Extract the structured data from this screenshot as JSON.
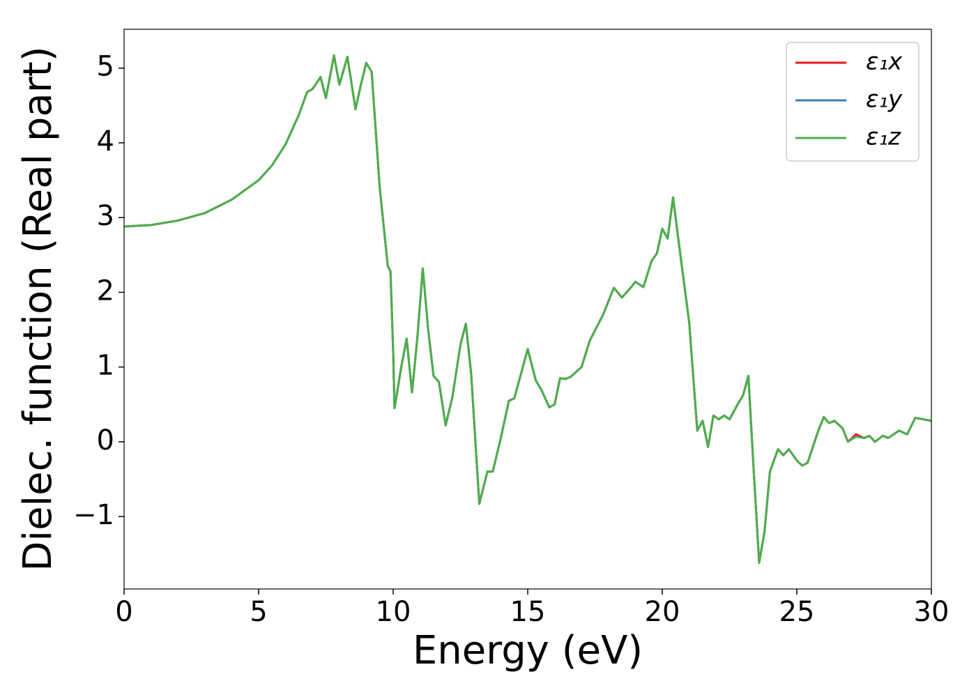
{
  "chart_data": {
    "type": "line",
    "xlabel": "Energy (eV)",
    "ylabel": "Dielec. function (Real part)",
    "xlim": [
      0,
      30
    ],
    "ylim": [
      -1.97,
      5.52
    ],
    "xticks": [
      0,
      5,
      10,
      15,
      20,
      25,
      30
    ],
    "yticks": [
      {
        "value": -1,
        "label": "−1"
      },
      0,
      1,
      2,
      3,
      4,
      5
    ],
    "legend": "upper right",
    "x": [
      0,
      1,
      2,
      3,
      4,
      5,
      5.5,
      6,
      6.5,
      6.8,
      7.0,
      7.3,
      7.5,
      7.8,
      8.0,
      8.3,
      8.6,
      8.8,
      9.0,
      9.2,
      9.5,
      9.8,
      9.9,
      10.0,
      10.05,
      10.3,
      10.5,
      10.7,
      10.9,
      11.1,
      11.3,
      11.5,
      11.7,
      11.95,
      12.2,
      12.5,
      12.7,
      12.9,
      13.2,
      13.5,
      13.7,
      14.0,
      14.3,
      14.5,
      15.0,
      15.3,
      15.5,
      15.8,
      16.0,
      16.2,
      16.4,
      16.6,
      17.0,
      17.3,
      17.8,
      18.2,
      18.5,
      18.8,
      19.0,
      19.3,
      19.6,
      19.8,
      20.0,
      20.2,
      20.4,
      20.6,
      21.0,
      21.3,
      21.5,
      21.7,
      21.9,
      22.1,
      22.3,
      22.5,
      22.8,
      23.0,
      23.2,
      23.4,
      23.6,
      23.8,
      24.0,
      24.3,
      24.5,
      24.7,
      25.0,
      25.2,
      25.4,
      25.8,
      26.0,
      26.2,
      26.4,
      26.7,
      26.9,
      27.2,
      27.5,
      27.7,
      27.9,
      28.2,
      28.4,
      28.8,
      29.1,
      29.4,
      29.7,
      30.0
    ],
    "series": [
      {
        "name": "ε₁x",
        "color": "#e41a1c",
        "values": [
          2.88,
          2.9,
          2.96,
          3.06,
          3.24,
          3.5,
          3.7,
          3.98,
          4.38,
          4.68,
          4.72,
          4.88,
          4.6,
          5.17,
          4.78,
          5.15,
          4.45,
          4.78,
          5.07,
          4.95,
          3.4,
          2.35,
          2.28,
          1.2,
          0.45,
          1.0,
          1.38,
          0.66,
          1.4,
          2.32,
          1.5,
          0.88,
          0.8,
          0.22,
          0.6,
          1.3,
          1.58,
          0.9,
          -0.83,
          -0.4,
          -0.4,
          0.05,
          0.55,
          0.58,
          1.24,
          0.82,
          0.7,
          0.46,
          0.5,
          0.85,
          0.84,
          0.87,
          1.0,
          1.35,
          1.7,
          2.06,
          1.93,
          2.05,
          2.14,
          2.07,
          2.42,
          2.52,
          2.85,
          2.72,
          3.27,
          2.7,
          1.6,
          0.15,
          0.28,
          -0.07,
          0.35,
          0.3,
          0.35,
          0.3,
          0.5,
          0.62,
          0.88,
          -0.4,
          -1.62,
          -1.2,
          -0.4,
          -0.1,
          -0.18,
          -0.1,
          -0.25,
          -0.32,
          -0.28,
          0.15,
          0.33,
          0.25,
          0.28,
          0.18,
          0.0,
          0.1,
          0.05,
          0.08,
          0.0,
          0.08,
          0.05,
          0.15,
          0.1,
          0.32,
          0.3,
          0.28
        ]
      },
      {
        "name": "ε₁y",
        "color": "#377eb8",
        "values": [
          2.88,
          2.9,
          2.96,
          3.06,
          3.24,
          3.5,
          3.7,
          3.98,
          4.38,
          4.68,
          4.72,
          4.88,
          4.6,
          5.17,
          4.78,
          5.15,
          4.45,
          4.78,
          5.07,
          4.95,
          3.4,
          2.35,
          2.28,
          1.2,
          0.45,
          1.0,
          1.38,
          0.66,
          1.4,
          2.32,
          1.5,
          0.88,
          0.8,
          0.22,
          0.6,
          1.3,
          1.58,
          0.9,
          -0.83,
          -0.4,
          -0.4,
          0.05,
          0.55,
          0.58,
          1.24,
          0.82,
          0.7,
          0.46,
          0.5,
          0.85,
          0.84,
          0.87,
          1.0,
          1.35,
          1.7,
          2.06,
          1.93,
          2.05,
          2.14,
          2.07,
          2.42,
          2.52,
          2.85,
          2.72,
          3.27,
          2.7,
          1.6,
          0.15,
          0.28,
          -0.07,
          0.35,
          0.3,
          0.35,
          0.3,
          0.5,
          0.62,
          0.88,
          -0.4,
          -1.62,
          -1.2,
          -0.4,
          -0.1,
          -0.18,
          -0.1,
          -0.25,
          -0.32,
          -0.28,
          0.15,
          0.33,
          0.25,
          0.28,
          0.18,
          0.0,
          0.07,
          0.05,
          0.08,
          0.0,
          0.08,
          0.05,
          0.15,
          0.1,
          0.32,
          0.3,
          0.28
        ]
      },
      {
        "name": "ε₁z",
        "color": "#4daf4a",
        "values": [
          2.88,
          2.9,
          2.96,
          3.06,
          3.24,
          3.5,
          3.7,
          3.98,
          4.38,
          4.68,
          4.72,
          4.88,
          4.6,
          5.17,
          4.78,
          5.15,
          4.45,
          4.78,
          5.07,
          4.95,
          3.4,
          2.35,
          2.28,
          1.2,
          0.45,
          1.0,
          1.38,
          0.66,
          1.4,
          2.32,
          1.5,
          0.88,
          0.8,
          0.22,
          0.6,
          1.3,
          1.58,
          0.9,
          -0.83,
          -0.4,
          -0.4,
          0.05,
          0.55,
          0.58,
          1.24,
          0.82,
          0.7,
          0.46,
          0.5,
          0.85,
          0.84,
          0.87,
          1.0,
          1.35,
          1.7,
          2.06,
          1.93,
          2.05,
          2.14,
          2.07,
          2.42,
          2.52,
          2.85,
          2.72,
          3.27,
          2.7,
          1.6,
          0.15,
          0.28,
          -0.07,
          0.35,
          0.3,
          0.35,
          0.3,
          0.5,
          0.62,
          0.88,
          -0.4,
          -1.62,
          -1.2,
          -0.4,
          -0.1,
          -0.18,
          -0.1,
          -0.25,
          -0.32,
          -0.28,
          0.15,
          0.33,
          0.25,
          0.28,
          0.18,
          0.0,
          0.07,
          0.05,
          0.08,
          0.0,
          0.08,
          0.05,
          0.15,
          0.1,
          0.32,
          0.3,
          0.28
        ]
      }
    ]
  }
}
